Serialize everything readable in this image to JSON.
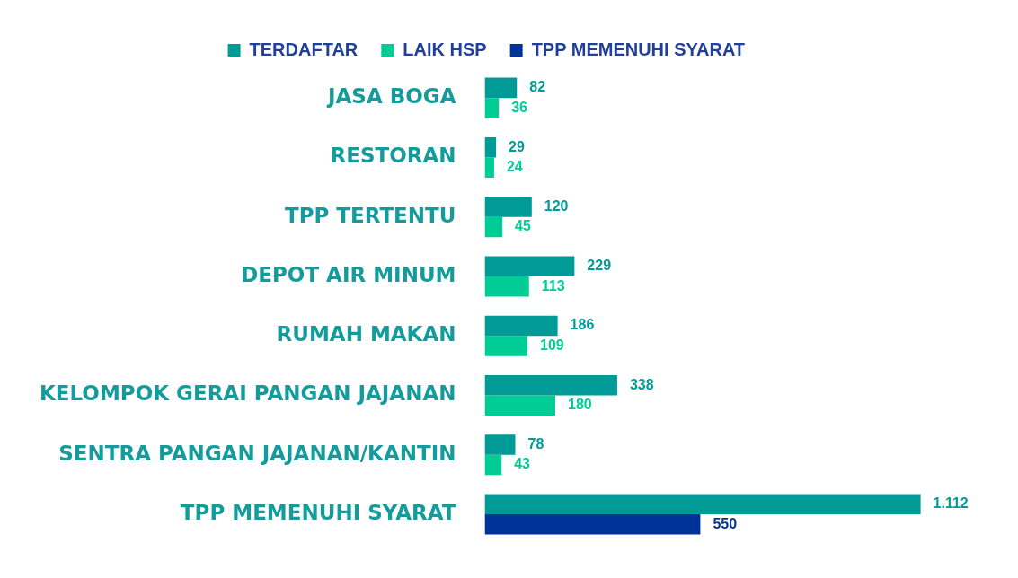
{
  "chart_data": {
    "type": "bar",
    "orientation": "horizontal",
    "legend": "top",
    "grid": false,
    "categories": [
      "JASA BOGA",
      "RESTORAN",
      "TPP TERTENTU",
      "DEPOT AIR MINUM",
      "RUMAH MAKAN",
      "KELOMPOK GERAI PANGAN JAJANAN",
      "SENTRA PANGAN JAJANAN/KANTIN",
      "TPP MEMENUHI SYARAT"
    ],
    "series": [
      {
        "name": "TERDAFTAR",
        "color": "#009b96",
        "values": [
          82,
          29,
          120,
          229,
          186,
          338,
          78,
          1112
        ],
        "value_labels": [
          "82",
          "29",
          "120",
          "229",
          "186",
          "338",
          "78",
          "1.112"
        ]
      },
      {
        "name": "LAIK HSP",
        "color": "#00cc96",
        "values": [
          36,
          24,
          45,
          113,
          109,
          180,
          43,
          null
        ],
        "value_labels": [
          "36",
          "24",
          "45",
          "113",
          "109",
          "180",
          "43",
          null
        ]
      },
      {
        "name": "TPP MEMENUHI SYARAT",
        "color": "#003399",
        "values": [
          null,
          null,
          null,
          null,
          null,
          null,
          null,
          550
        ],
        "value_labels": [
          null,
          null,
          null,
          null,
          null,
          null,
          null,
          "550"
        ]
      }
    ]
  }
}
